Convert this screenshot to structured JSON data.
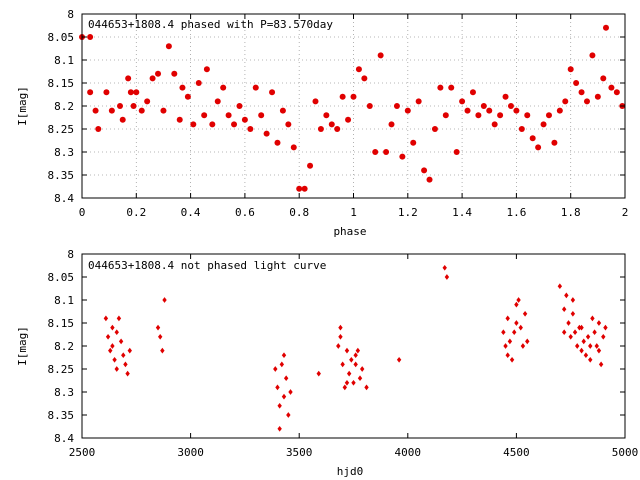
{
  "chart_data": [
    {
      "type": "scatter",
      "title": "044653+1808.4 phased with P=83.570day",
      "xlabel": "phase",
      "ylabel": "I[mag]",
      "xlim": [
        0,
        2
      ],
      "ylim": [
        8.0,
        8.4
      ],
      "y_inverted": true,
      "grid": true,
      "marker": "filled-circle-large",
      "color": "#e00000",
      "xticks": [
        "0",
        "0.2",
        "0.4",
        "0.6",
        "0.8",
        "1",
        "1.2",
        "1.4",
        "1.6",
        "1.8",
        "2"
      ],
      "xtick_values": [
        0,
        0.2,
        0.4,
        0.6,
        0.8,
        1.0,
        1.2,
        1.4,
        1.6,
        1.8,
        2.0
      ],
      "yticks": [
        "8",
        "8.05",
        "8.1",
        "8.15",
        "8.2",
        "8.25",
        "8.3",
        "8.35",
        "8.4"
      ],
      "ytick_values": [
        8.0,
        8.05,
        8.1,
        8.15,
        8.2,
        8.25,
        8.3,
        8.35,
        8.4
      ],
      "points": [
        [
          0.0,
          8.05
        ],
        [
          0.03,
          8.05
        ],
        [
          0.03,
          8.17
        ],
        [
          0.06,
          8.25
        ],
        [
          0.05,
          8.21
        ],
        [
          0.09,
          8.17
        ],
        [
          0.11,
          8.21
        ],
        [
          0.14,
          8.2
        ],
        [
          0.15,
          8.23
        ],
        [
          0.17,
          8.14
        ],
        [
          0.18,
          8.17
        ],
        [
          0.19,
          8.2
        ],
        [
          0.2,
          8.17
        ],
        [
          0.22,
          8.21
        ],
        [
          0.24,
          8.19
        ],
        [
          0.26,
          8.14
        ],
        [
          0.28,
          8.13
        ],
        [
          0.3,
          8.21
        ],
        [
          0.32,
          8.07
        ],
        [
          0.34,
          8.13
        ],
        [
          0.36,
          8.23
        ],
        [
          0.37,
          8.16
        ],
        [
          0.39,
          8.18
        ],
        [
          0.41,
          8.24
        ],
        [
          0.43,
          8.15
        ],
        [
          0.45,
          8.22
        ],
        [
          0.46,
          8.12
        ],
        [
          0.48,
          8.24
        ],
        [
          0.5,
          8.19
        ],
        [
          0.52,
          8.16
        ],
        [
          0.54,
          8.22
        ],
        [
          0.56,
          8.24
        ],
        [
          0.58,
          8.2
        ],
        [
          0.6,
          8.23
        ],
        [
          0.62,
          8.25
        ],
        [
          0.64,
          8.16
        ],
        [
          0.66,
          8.22
        ],
        [
          0.68,
          8.26
        ],
        [
          0.7,
          8.17
        ],
        [
          0.72,
          8.28
        ],
        [
          0.74,
          8.21
        ],
        [
          0.76,
          8.24
        ],
        [
          0.78,
          8.29
        ],
        [
          0.8,
          8.38
        ],
        [
          0.82,
          8.38
        ],
        [
          0.84,
          8.33
        ],
        [
          0.86,
          8.19
        ],
        [
          0.88,
          8.25
        ],
        [
          0.9,
          8.22
        ],
        [
          0.92,
          8.24
        ],
        [
          0.94,
          8.25
        ],
        [
          0.96,
          8.18
        ],
        [
          0.98,
          8.23
        ],
        [
          1.0,
          8.18
        ],
        [
          1.02,
          8.12
        ],
        [
          1.04,
          8.14
        ],
        [
          1.06,
          8.2
        ],
        [
          1.08,
          8.3
        ],
        [
          1.1,
          8.09
        ],
        [
          1.12,
          8.3
        ],
        [
          1.14,
          8.24
        ],
        [
          1.16,
          8.2
        ],
        [
          1.18,
          8.31
        ],
        [
          1.2,
          8.21
        ],
        [
          1.22,
          8.28
        ],
        [
          1.24,
          8.19
        ],
        [
          1.26,
          8.34
        ],
        [
          1.28,
          8.36
        ],
        [
          1.3,
          8.25
        ],
        [
          1.32,
          8.16
        ],
        [
          1.34,
          8.22
        ],
        [
          1.36,
          8.16
        ],
        [
          1.38,
          8.3
        ],
        [
          1.4,
          8.19
        ],
        [
          1.42,
          8.21
        ],
        [
          1.44,
          8.17
        ],
        [
          1.46,
          8.22
        ],
        [
          1.48,
          8.2
        ],
        [
          1.5,
          8.21
        ],
        [
          1.52,
          8.24
        ],
        [
          1.54,
          8.22
        ],
        [
          1.56,
          8.18
        ],
        [
          1.58,
          8.2
        ],
        [
          1.6,
          8.21
        ],
        [
          1.62,
          8.25
        ],
        [
          1.64,
          8.22
        ],
        [
          1.66,
          8.27
        ],
        [
          1.68,
          8.29
        ],
        [
          1.7,
          8.24
        ],
        [
          1.72,
          8.22
        ],
        [
          1.74,
          8.28
        ],
        [
          1.76,
          8.21
        ],
        [
          1.78,
          8.19
        ],
        [
          1.8,
          8.12
        ],
        [
          1.82,
          8.15
        ],
        [
          1.84,
          8.17
        ],
        [
          1.86,
          8.19
        ],
        [
          1.88,
          8.09
        ],
        [
          1.9,
          8.18
        ],
        [
          1.92,
          8.14
        ],
        [
          1.93,
          8.03
        ],
        [
          1.95,
          8.16
        ],
        [
          1.97,
          8.17
        ],
        [
          1.99,
          8.2
        ]
      ]
    },
    {
      "type": "scatter",
      "title": "044653+1808.4 not phased light curve",
      "xlabel": "hjd0",
      "ylabel": "I[mag]",
      "xlim": [
        2500,
        5000
      ],
      "ylim": [
        8.0,
        8.4
      ],
      "y_inverted": true,
      "grid": false,
      "marker": "diamond-small",
      "color": "#e00000",
      "xticks": [
        "2500",
        "3000",
        "3500",
        "4000",
        "4500",
        "5000"
      ],
      "xtick_values": [
        2500,
        3000,
        3500,
        4000,
        4500,
        5000
      ],
      "yticks": [
        "8",
        "8.05",
        "8.1",
        "8.15",
        "8.2",
        "8.25",
        "8.3",
        "8.35",
        "8.4"
      ],
      "ytick_values": [
        8.0,
        8.05,
        8.1,
        8.15,
        8.2,
        8.25,
        8.3,
        8.35,
        8.4
      ],
      "points": [
        [
          2610,
          8.14
        ],
        [
          2620,
          8.18
        ],
        [
          2630,
          8.21
        ],
        [
          2640,
          8.2
        ],
        [
          2650,
          8.23
        ],
        [
          2660,
          8.17
        ],
        [
          2670,
          8.14
        ],
        [
          2680,
          8.19
        ],
        [
          2690,
          8.22
        ],
        [
          2700,
          8.24
        ],
        [
          2710,
          8.26
        ],
        [
          2720,
          8.21
        ],
        [
          2640,
          8.16
        ],
        [
          2660,
          8.25
        ],
        [
          2850,
          8.16
        ],
        [
          2860,
          8.18
        ],
        [
          2870,
          8.21
        ],
        [
          2880,
          8.1
        ],
        [
          3390,
          8.25
        ],
        [
          3400,
          8.29
        ],
        [
          3410,
          8.38
        ],
        [
          3420,
          8.24
        ],
        [
          3430,
          8.31
        ],
        [
          3440,
          8.27
        ],
        [
          3450,
          8.35
        ],
        [
          3460,
          8.3
        ],
        [
          3410,
          8.33
        ],
        [
          3430,
          8.22
        ],
        [
          3590,
          8.26
        ],
        [
          3680,
          8.2
        ],
        [
          3690,
          8.16
        ],
        [
          3700,
          8.24
        ],
        [
          3710,
          8.29
        ],
        [
          3720,
          8.21
        ],
        [
          3730,
          8.26
        ],
        [
          3740,
          8.23
        ],
        [
          3750,
          8.28
        ],
        [
          3760,
          8.24
        ],
        [
          3770,
          8.21
        ],
        [
          3780,
          8.27
        ],
        [
          3790,
          8.25
        ],
        [
          3810,
          8.29
        ],
        [
          3690,
          8.18
        ],
        [
          3720,
          8.28
        ],
        [
          3760,
          8.22
        ],
        [
          3960,
          8.23
        ],
        [
          4170,
          8.03
        ],
        [
          4180,
          8.05
        ],
        [
          4440,
          8.17
        ],
        [
          4450,
          8.2
        ],
        [
          4460,
          8.14
        ],
        [
          4470,
          8.19
        ],
        [
          4480,
          8.23
        ],
        [
          4490,
          8.17
        ],
        [
          4500,
          8.11
        ],
        [
          4510,
          8.1
        ],
        [
          4520,
          8.16
        ],
        [
          4530,
          8.2
        ],
        [
          4540,
          8.13
        ],
        [
          4550,
          8.19
        ],
        [
          4460,
          8.22
        ],
        [
          4500,
          8.15
        ],
        [
          4700,
          8.07
        ],
        [
          4720,
          8.12
        ],
        [
          4730,
          8.09
        ],
        [
          4740,
          8.15
        ],
        [
          4750,
          8.18
        ],
        [
          4760,
          8.13
        ],
        [
          4770,
          8.17
        ],
        [
          4780,
          8.2
        ],
        [
          4790,
          8.16
        ],
        [
          4800,
          8.21
        ],
        [
          4810,
          8.19
        ],
        [
          4820,
          8.22
        ],
        [
          4830,
          8.18
        ],
        [
          4840,
          8.2
        ],
        [
          4850,
          8.14
        ],
        [
          4860,
          8.17
        ],
        [
          4870,
          8.2
        ],
        [
          4880,
          8.21
        ],
        [
          4890,
          8.24
        ],
        [
          4900,
          8.18
        ],
        [
          4910,
          8.16
        ],
        [
          4720,
          8.17
        ],
        [
          4760,
          8.1
        ],
        [
          4800,
          8.16
        ],
        [
          4840,
          8.23
        ],
        [
          4880,
          8.15
        ]
      ]
    }
  ]
}
